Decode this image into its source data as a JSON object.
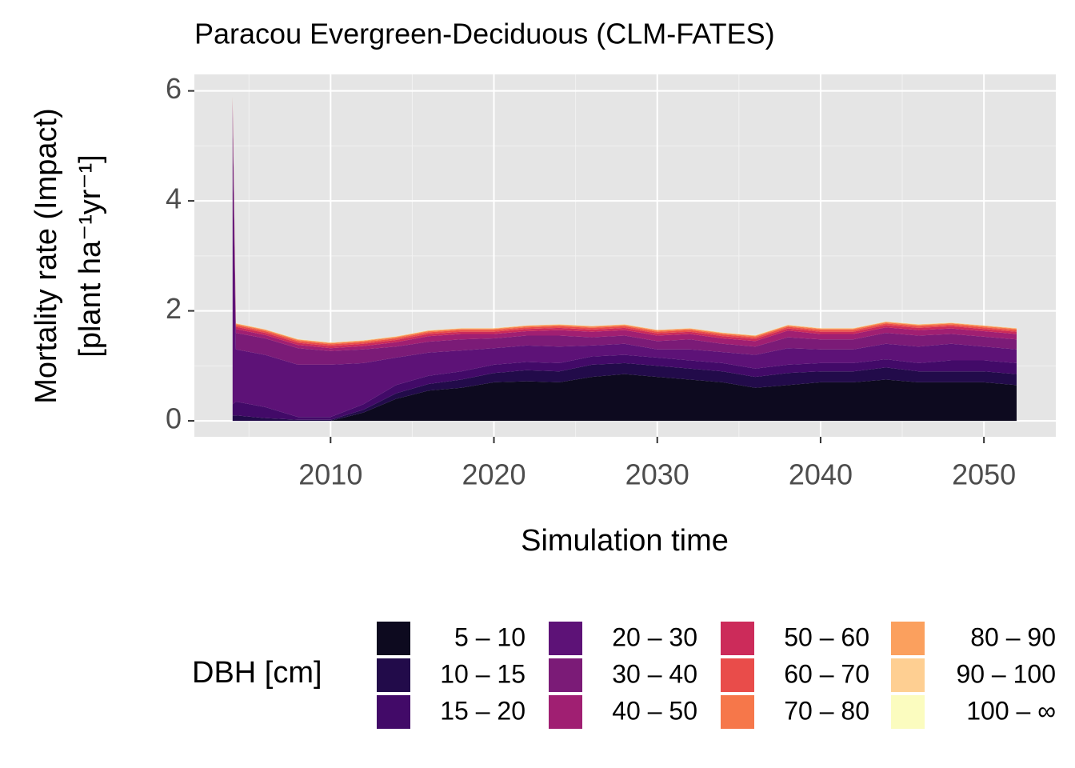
{
  "chart_data": {
    "type": "stacked-area",
    "title": "Paracou Evergreen-Deciduous (CLM-FATES)",
    "xlabel": "Simulation time",
    "ylabel": [
      "Mortality rate (Impact)",
      "[plant ha⁻¹yr⁻¹]"
    ],
    "legend_title": "DBH [cm]",
    "grid": true,
    "xlim": [
      2001.66,
      2054.4
    ],
    "xticks": [
      2010,
      2020,
      2030,
      2040,
      2050
    ],
    "ylim": [
      -0.29,
      6.3
    ],
    "yticks": [
      0,
      2,
      4,
      6
    ],
    "x": [
      2004,
      2004.2,
      2006,
      2008,
      2010,
      2012,
      2014,
      2016,
      2018,
      2020,
      2022,
      2024,
      2026,
      2028,
      2030,
      2032,
      2034,
      2036,
      2038,
      2040,
      2042,
      2044,
      2046,
      2048,
      2050,
      2052
    ],
    "series": [
      {
        "name": "5 – 10",
        "color": "#0d0a1f",
        "values": [
          0,
          0,
          0,
          0,
          0,
          0.15,
          0.4,
          0.55,
          0.6,
          0.7,
          0.72,
          0.7,
          0.8,
          0.85,
          0.8,
          0.75,
          0.7,
          0.6,
          0.65,
          0.7,
          0.7,
          0.75,
          0.7,
          0.7,
          0.7,
          0.65
        ]
      },
      {
        "name": "10 – 15",
        "color": "#220b4a",
        "values": [
          0.1,
          0.1,
          0.05,
          0.02,
          0.02,
          0.05,
          0.1,
          0.12,
          0.15,
          0.17,
          0.2,
          0.2,
          0.22,
          0.2,
          0.2,
          0.2,
          0.2,
          0.2,
          0.22,
          0.2,
          0.2,
          0.22,
          0.2,
          0.2,
          0.2,
          0.2
        ]
      },
      {
        "name": "15 – 20",
        "color": "#420a68",
        "values": [
          0.2,
          0.25,
          0.2,
          0.05,
          0.05,
          0.1,
          0.15,
          0.15,
          0.15,
          0.15,
          0.15,
          0.15,
          0.15,
          0.15,
          0.15,
          0.15,
          0.15,
          0.15,
          0.15,
          0.15,
          0.15,
          0.15,
          0.15,
          0.2,
          0.2,
          0.2
        ]
      },
      {
        "name": "20 – 30",
        "color": "#5d1277",
        "values": [
          5.0,
          0.95,
          0.95,
          0.95,
          0.95,
          0.75,
          0.5,
          0.42,
          0.38,
          0.3,
          0.3,
          0.3,
          0.2,
          0.2,
          0.15,
          0.2,
          0.2,
          0.25,
          0.3,
          0.25,
          0.25,
          0.28,
          0.3,
          0.3,
          0.25,
          0.25
        ]
      },
      {
        "name": "30 – 40",
        "color": "#7b1b77",
        "values": [
          0.4,
          0.3,
          0.3,
          0.3,
          0.25,
          0.25,
          0.2,
          0.2,
          0.2,
          0.18,
          0.18,
          0.2,
          0.15,
          0.15,
          0.15,
          0.18,
          0.15,
          0.15,
          0.2,
          0.18,
          0.18,
          0.2,
          0.2,
          0.18,
          0.18,
          0.18
        ]
      },
      {
        "name": "40 – 50",
        "color": "#a01f72",
        "values": [
          0.1,
          0.07,
          0.06,
          0.06,
          0.05,
          0.06,
          0.08,
          0.1,
          0.1,
          0.08,
          0.08,
          0.1,
          0.1,
          0.1,
          0.1,
          0.1,
          0.1,
          0.1,
          0.12,
          0.1,
          0.1,
          0.1,
          0.1,
          0.1,
          0.1,
          0.1
        ]
      },
      {
        "name": "50 – 60",
        "color": "#cc2b5a",
        "values": [
          0.04,
          0.04,
          0.04,
          0.04,
          0.04,
          0.04,
          0.04,
          0.04,
          0.04,
          0.04,
          0.04,
          0.04,
          0.04,
          0.04,
          0.04,
          0.04,
          0.04,
          0.04,
          0.04,
          0.04,
          0.04,
          0.04,
          0.04,
          0.04,
          0.04,
          0.04
        ]
      },
      {
        "name": "60 – 70",
        "color": "#e94c4a",
        "values": [
          0.03,
          0.03,
          0.03,
          0.03,
          0.03,
          0.03,
          0.03,
          0.03,
          0.03,
          0.03,
          0.03,
          0.03,
          0.03,
          0.03,
          0.03,
          0.03,
          0.03,
          0.03,
          0.03,
          0.03,
          0.03,
          0.03,
          0.03,
          0.03,
          0.03,
          0.03
        ]
      },
      {
        "name": "70 – 80",
        "color": "#f6774a",
        "values": [
          0.02,
          0.02,
          0.02,
          0.02,
          0.02,
          0.02,
          0.02,
          0.02,
          0.02,
          0.02,
          0.02,
          0.02,
          0.02,
          0.02,
          0.02,
          0.02,
          0.02,
          0.02,
          0.02,
          0.02,
          0.02,
          0.02,
          0.02,
          0.02,
          0.02,
          0.02
        ]
      },
      {
        "name": "80 – 90",
        "color": "#fba05e",
        "values": [
          0.01,
          0.01,
          0.01,
          0.01,
          0.01,
          0.01,
          0.01,
          0.01,
          0.01,
          0.01,
          0.01,
          0.01,
          0.01,
          0.01,
          0.01,
          0.01,
          0.01,
          0.01,
          0.01,
          0.01,
          0.01,
          0.01,
          0.01,
          0.01,
          0.01,
          0.01
        ]
      },
      {
        "name": "90 – 100",
        "color": "#fecf92",
        "values": [
          0.005,
          0.005,
          0.005,
          0.005,
          0.005,
          0.005,
          0.005,
          0.005,
          0.005,
          0.005,
          0.005,
          0.005,
          0.005,
          0.005,
          0.005,
          0.005,
          0.005,
          0.005,
          0.005,
          0.005,
          0.005,
          0.005,
          0.005,
          0.005,
          0.005,
          0.005
        ]
      },
      {
        "name": "100 – ∞",
        "color": "#fbfcbf",
        "values": [
          0.002,
          0.002,
          0.002,
          0.002,
          0.002,
          0.002,
          0.002,
          0.002,
          0.002,
          0.002,
          0.002,
          0.002,
          0.002,
          0.002,
          0.002,
          0.002,
          0.002,
          0.002,
          0.002,
          0.002,
          0.002,
          0.002,
          0.002,
          0.002,
          0.002,
          0.002
        ]
      }
    ]
  }
}
